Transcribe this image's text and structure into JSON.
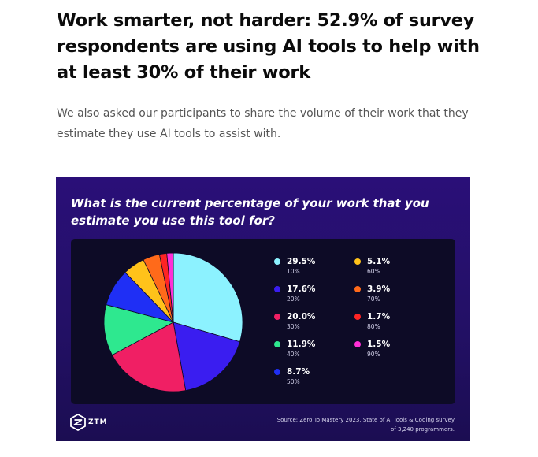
{
  "article": {
    "title": "Work smarter, not harder: 52.9% of survey respondents are using AI tools to help with at least 30% of their work",
    "intro": "We also asked our participants to share the volume of their work that they estimate they use AI tools to assist with."
  },
  "card": {
    "logo_text": "ZTM",
    "source": "Source: Zero To Mastery 2023, State of AI Tools & Coding survey of 3,240 programmers."
  },
  "chart_data": {
    "type": "pie",
    "title": "What is the current percentage of your work that you estimate you use this tool for?",
    "legend_position": "right",
    "slices": [
      {
        "label": "10%",
        "value": 29.5,
        "value_label": "29.5%",
        "color": "#8cf2ff"
      },
      {
        "label": "20%",
        "value": 17.6,
        "value_label": "17.6%",
        "color": "#3a1df0"
      },
      {
        "label": "30%",
        "value": 20.0,
        "value_label": "20.0%",
        "color": "#f01f64"
      },
      {
        "label": "40%",
        "value": 11.9,
        "value_label": "11.9%",
        "color": "#2ee88f"
      },
      {
        "label": "50%",
        "value": 8.7,
        "value_label": "8.7%",
        "color": "#1f2ff5"
      },
      {
        "label": "60%",
        "value": 5.1,
        "value_label": "5.1%",
        "color": "#ffc21a"
      },
      {
        "label": "70%",
        "value": 3.9,
        "value_label": "3.9%",
        "color": "#ff6a1a"
      },
      {
        "label": "80%",
        "value": 1.7,
        "value_label": "1.7%",
        "color": "#ff2424"
      },
      {
        "label": "90%",
        "value": 1.5,
        "value_label": "1.5%",
        "color": "#ff2fd6"
      }
    ]
  }
}
